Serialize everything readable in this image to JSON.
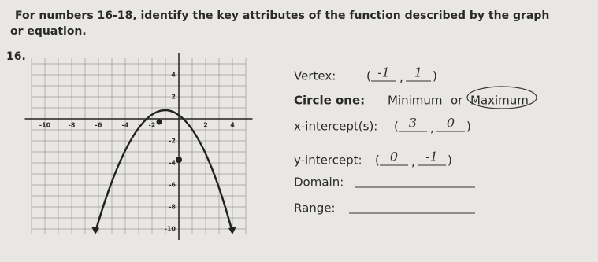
{
  "header": {
    "instructions": "For numbers 16-18, identify the key attributes of the function described by the graph or equation."
  },
  "problem": {
    "number": "16.",
    "graph": {
      "x_tick_labels": [
        -10,
        -8,
        -6,
        -4,
        -2,
        2,
        4
      ],
      "y_tick_labels": [
        4,
        2,
        -2,
        -4,
        -6,
        -8,
        -10
      ]
    },
    "vertex": {
      "label": "Vertex:",
      "open": "(",
      "separator": ",",
      "close": ")",
      "answers": [
        "-1",
        "1"
      ]
    },
    "circle_one": {
      "label": "Circle one:",
      "options": [
        "Minimum",
        "or",
        "Maximum"
      ]
    },
    "x_intercepts": {
      "label": "x-intercept(s):",
      "open": "(",
      "separator": ",",
      "close": ")",
      "answers": [
        "3",
        "0"
      ]
    },
    "y_intercept": {
      "label": "y-intercept:",
      "open": "(",
      "separator": ",",
      "close": ")",
      "answers": [
        "0",
        "-1"
      ]
    },
    "domain": {
      "label": "Domain:"
    },
    "range": {
      "label": "Range:"
    }
  }
}
